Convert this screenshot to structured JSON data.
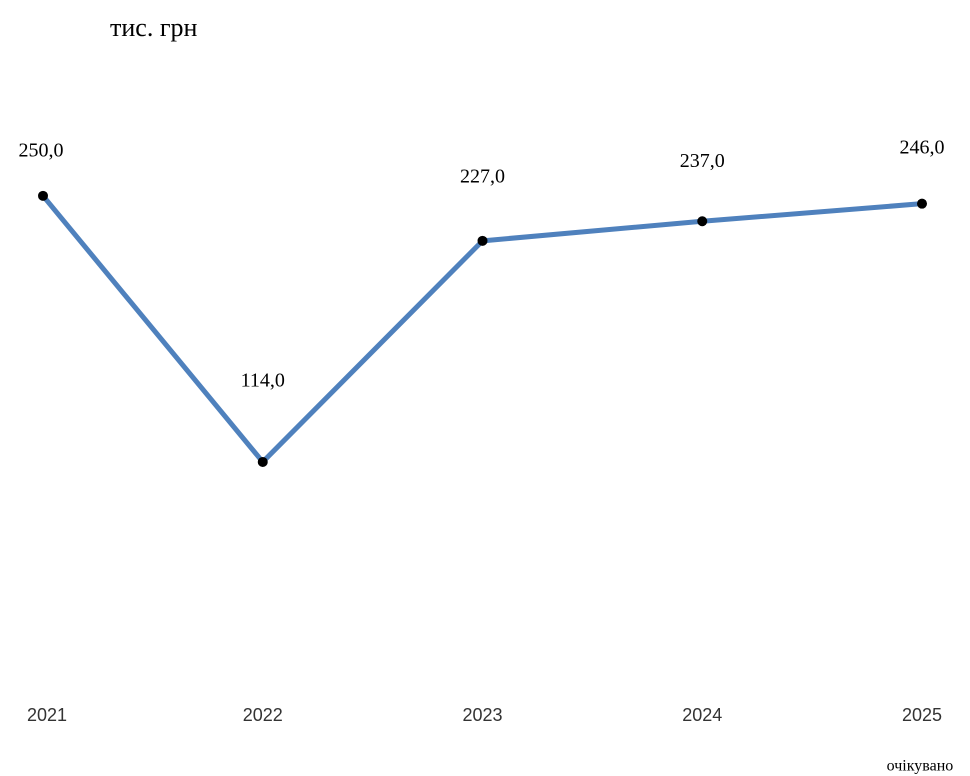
{
  "chart_data": {
    "type": "line",
    "title": "тис. грн",
    "categories": [
      "2021",
      "2022",
      "2023",
      "2024",
      "2025"
    ],
    "series": [
      {
        "color": "#4f81bd",
        "values": [
          250,
          114,
          227,
          237,
          246
        ],
        "value_labels": [
          "250,0",
          "114,0",
          "227,0",
          "237,0",
          "246,0"
        ]
      }
    ],
    "annotations": [
      "очікувано"
    ],
    "marker_color": "#000000",
    "ylim": [
      0,
      300
    ]
  }
}
